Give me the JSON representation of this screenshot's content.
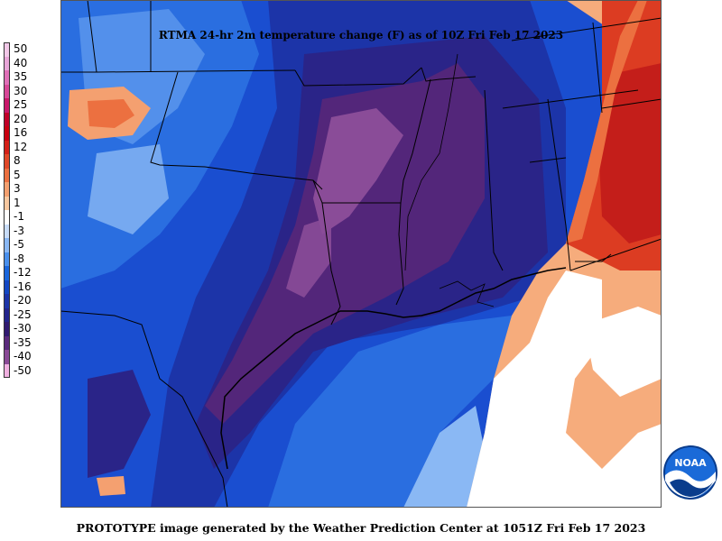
{
  "title": "RTMA 24-hr 2m temperature change (F) as of 10Z Fri Feb 17 2023",
  "footer": "PROTOTYPE image generated by the Weather Prediction Center at 1051Z Fri Feb 17 2023",
  "logo_text": "NOAA",
  "legend": [
    {
      "label": "50",
      "color": "#f2c8e8"
    },
    {
      "label": "40",
      "color": "#e8a6d8"
    },
    {
      "label": "35",
      "color": "#e070b8"
    },
    {
      "label": "30",
      "color": "#d84898"
    },
    {
      "label": "25",
      "color": "#c8186a"
    },
    {
      "label": "20",
      "color": "#c00028"
    },
    {
      "label": "16",
      "color": "#c80010"
    },
    {
      "label": "12",
      "color": "#d42018"
    },
    {
      "label": "8",
      "color": "#e04828"
    },
    {
      "label": "5",
      "color": "#ec7040"
    },
    {
      "label": "3",
      "color": "#f4a070"
    },
    {
      "label": "1",
      "color": "#f8c8a0"
    },
    {
      "label": "-1",
      "color": "#ffffff"
    },
    {
      "label": "-3",
      "color": "#c8dcf8"
    },
    {
      "label": "-5",
      "color": "#8ab8f4"
    },
    {
      "label": "-8",
      "color": "#4a90ec"
    },
    {
      "label": "-12",
      "color": "#1a66dc"
    },
    {
      "label": "-16",
      "color": "#1448c4"
    },
    {
      "label": "-20",
      "color": "#1c34a8"
    },
    {
      "label": "-25",
      "color": "#22248c"
    },
    {
      "label": "-30",
      "color": "#301a70"
    },
    {
      "label": "-35",
      "color": "#5a2a7c"
    },
    {
      "label": "-40",
      "color": "#8a4a96"
    },
    {
      "label": "-50",
      "color": "#f0b0e0"
    }
  ],
  "colors": {
    "warm_core": "#c41e1a",
    "warm_mid": "#dc3c22",
    "warm_edge": "#ec7040",
    "peach": "#f6ac7c",
    "neutral": "#ffffff",
    "pale_blue": "#c8dcf8",
    "light_blue": "#6ea8f0",
    "mid_blue": "#2a6ee0",
    "blue": "#1a4ed0",
    "deep_blue": "#1c34a8",
    "navy": "#2a2488",
    "purple": "#53267a",
    "light_purple": "#8a4c98",
    "border_line": "#000000"
  }
}
